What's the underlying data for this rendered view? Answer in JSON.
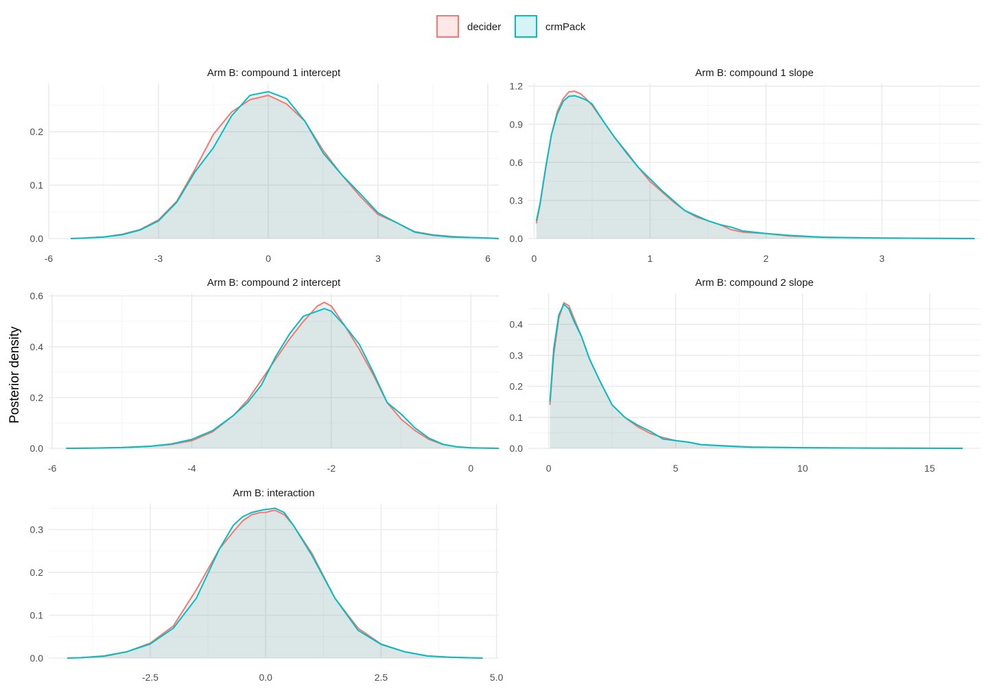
{
  "ylabel": "Posterior density",
  "legend": {
    "placement": "top-center",
    "items": [
      {
        "label": "decider",
        "color": "#F8766D",
        "fill": "#FDE8E7"
      },
      {
        "label": "crmPack",
        "color": "#00BFC4",
        "fill": "#D6F4F5"
      }
    ]
  },
  "chart_data": [
    {
      "type": "area",
      "title": "Arm B: compound 1 intercept",
      "xlim": [
        -6,
        6.3
      ],
      "ylim": [
        0,
        0.29
      ],
      "xticks": [
        -6,
        -3,
        0,
        3,
        6
      ],
      "xtick_labels": [
        "-6",
        "-3",
        "0",
        "3",
        "6"
      ],
      "yticks": [
        0,
        0.1,
        0.2
      ],
      "ytick_labels": [
        "0.0",
        "0.1",
        "0.2"
      ],
      "series": [
        {
          "name": "decider",
          "x": [
            -5.4,
            -5,
            -4.5,
            -4,
            -3.5,
            -3,
            -2.5,
            -2,
            -1.5,
            -1,
            -0.5,
            0,
            0.5,
            1,
            1.5,
            2,
            2.5,
            3,
            3.5,
            4,
            4.5,
            5,
            5.5,
            6,
            6.3
          ],
          "y": [
            0,
            0.001,
            0.003,
            0.008,
            0.017,
            0.035,
            0.07,
            0.13,
            0.195,
            0.237,
            0.26,
            0.268,
            0.252,
            0.22,
            0.165,
            0.12,
            0.08,
            0.045,
            0.03,
            0.013,
            0.007,
            0.004,
            0.002,
            0.001,
            0
          ]
        },
        {
          "name": "crmPack",
          "x": [
            -5.4,
            -5,
            -4.5,
            -4,
            -3.5,
            -3,
            -2.5,
            -2,
            -1.5,
            -1,
            -0.5,
            0,
            0.5,
            1,
            1.5,
            2,
            2.5,
            3,
            3.5,
            4,
            4.5,
            5,
            5.5,
            6,
            6.3
          ],
          "y": [
            0,
            0.001,
            0.003,
            0.007,
            0.016,
            0.033,
            0.068,
            0.125,
            0.17,
            0.23,
            0.268,
            0.275,
            0.262,
            0.22,
            0.16,
            0.12,
            0.085,
            0.048,
            0.03,
            0.012,
            0.006,
            0.003,
            0.002,
            0.001,
            0
          ]
        }
      ]
    },
    {
      "type": "area",
      "title": "Arm B: compound 1 slope",
      "xlim": [
        -0.05,
        3.85
      ],
      "ylim": [
        0,
        1.22
      ],
      "xticks": [
        0,
        1,
        2,
        3
      ],
      "xtick_labels": [
        "0",
        "1",
        "2",
        "3"
      ],
      "yticks": [
        0,
        0.3,
        0.6,
        0.9,
        1.2
      ],
      "ytick_labels": [
        "0.0",
        "0.3",
        "0.6",
        "0.9",
        "1.2"
      ],
      "series": [
        {
          "name": "decider",
          "x": [
            0.02,
            0.05,
            0.1,
            0.15,
            0.2,
            0.25,
            0.3,
            0.35,
            0.4,
            0.45,
            0.5,
            0.6,
            0.7,
            0.8,
            0.9,
            1,
            1.1,
            1.2,
            1.3,
            1.4,
            1.5,
            1.6,
            1.7,
            1.8,
            2,
            2.2,
            2.5,
            3,
            3.5,
            3.8
          ],
          "y": [
            0.12,
            0.26,
            0.55,
            0.82,
            1.0,
            1.1,
            1.155,
            1.16,
            1.14,
            1.1,
            1.05,
            0.92,
            0.79,
            0.68,
            0.56,
            0.45,
            0.37,
            0.29,
            0.22,
            0.17,
            0.14,
            0.11,
            0.07,
            0.05,
            0.04,
            0.02,
            0.01,
            0.004,
            0.001,
            0
          ]
        },
        {
          "name": "crmPack",
          "x": [
            0.02,
            0.05,
            0.1,
            0.15,
            0.2,
            0.25,
            0.3,
            0.35,
            0.4,
            0.45,
            0.5,
            0.6,
            0.7,
            0.8,
            0.9,
            1,
            1.1,
            1.2,
            1.3,
            1.4,
            1.5,
            1.6,
            1.7,
            1.8,
            2,
            2.2,
            2.5,
            3,
            3.5,
            3.8
          ],
          "y": [
            0.14,
            0.27,
            0.56,
            0.82,
            0.98,
            1.08,
            1.12,
            1.125,
            1.11,
            1.09,
            1.06,
            0.92,
            0.79,
            0.67,
            0.56,
            0.47,
            0.38,
            0.3,
            0.22,
            0.18,
            0.14,
            0.11,
            0.09,
            0.06,
            0.04,
            0.025,
            0.01,
            0.004,
            0.001,
            0
          ]
        }
      ]
    },
    {
      "type": "area",
      "title": "Arm B: compound 2 intercept",
      "xlim": [
        -6.05,
        0.4
      ],
      "ylim": [
        0,
        0.61
      ],
      "xticks": [
        -6,
        -4,
        -2,
        0
      ],
      "xtick_labels": [
        "-6",
        "-4",
        "-2",
        "0"
      ],
      "yticks": [
        0,
        0.2,
        0.4,
        0.6
      ],
      "ytick_labels": [
        "0.0",
        "0.2",
        "0.4",
        "0.6"
      ],
      "series": [
        {
          "name": "decider",
          "x": [
            -5.8,
            -5.4,
            -5,
            -4.6,
            -4.3,
            -4,
            -3.7,
            -3.4,
            -3.2,
            -3,
            -2.8,
            -2.6,
            -2.4,
            -2.2,
            -2.1,
            -2,
            -1.8,
            -1.6,
            -1.4,
            -1.2,
            -1,
            -0.8,
            -0.6,
            -0.4,
            -0.2,
            0,
            0.4
          ],
          "y": [
            0,
            0.001,
            0.003,
            0.008,
            0.015,
            0.03,
            0.065,
            0.13,
            0.19,
            0.27,
            0.35,
            0.43,
            0.5,
            0.56,
            0.575,
            0.56,
            0.48,
            0.39,
            0.29,
            0.18,
            0.115,
            0.07,
            0.035,
            0.015,
            0.006,
            0.002,
            0
          ]
        },
        {
          "name": "crmPack",
          "x": [
            -5.8,
            -5.4,
            -5,
            -4.6,
            -4.3,
            -4,
            -3.7,
            -3.4,
            -3.2,
            -3,
            -2.8,
            -2.6,
            -2.4,
            -2.2,
            -2.1,
            -2,
            -1.8,
            -1.6,
            -1.4,
            -1.2,
            -1,
            -0.8,
            -0.6,
            -0.4,
            -0.2,
            0,
            0.4
          ],
          "y": [
            0,
            0.001,
            0.003,
            0.008,
            0.017,
            0.035,
            0.07,
            0.13,
            0.18,
            0.25,
            0.36,
            0.45,
            0.52,
            0.54,
            0.55,
            0.54,
            0.48,
            0.41,
            0.3,
            0.18,
            0.135,
            0.08,
            0.04,
            0.016,
            0.006,
            0.002,
            0
          ]
        }
      ]
    },
    {
      "type": "area",
      "title": "Arm B: compound 2 slope",
      "xlim": [
        -0.8,
        17
      ],
      "ylim": [
        0,
        0.5
      ],
      "xticks": [
        0,
        5,
        10,
        15
      ],
      "xtick_labels": [
        "0",
        "5",
        "10",
        "15"
      ],
      "yticks": [
        0,
        0.1,
        0.2,
        0.3,
        0.4
      ],
      "ytick_labels": [
        "0.0",
        "0.1",
        "0.2",
        "0.3",
        "0.4"
      ],
      "series": [
        {
          "name": "decider",
          "x": [
            0.05,
            0.2,
            0.4,
            0.6,
            0.8,
            1,
            1.3,
            1.6,
            2,
            2.5,
            3,
            3.5,
            4,
            4.5,
            5,
            5.5,
            6,
            7,
            8,
            9,
            10,
            12,
            14,
            16.3
          ],
          "y": [
            0.14,
            0.3,
            0.42,
            0.47,
            0.46,
            0.42,
            0.36,
            0.29,
            0.22,
            0.14,
            0.1,
            0.07,
            0.048,
            0.035,
            0.025,
            0.02,
            0.012,
            0.008,
            0.004,
            0.003,
            0.002,
            0.001,
            0.0005,
            0
          ]
        },
        {
          "name": "crmPack",
          "x": [
            0.05,
            0.2,
            0.4,
            0.6,
            0.8,
            1,
            1.3,
            1.6,
            2,
            2.5,
            3,
            3.5,
            4,
            4.5,
            5,
            5.5,
            6,
            7,
            8,
            9,
            10,
            12,
            14,
            16.3
          ],
          "y": [
            0.15,
            0.32,
            0.43,
            0.465,
            0.45,
            0.41,
            0.36,
            0.29,
            0.22,
            0.14,
            0.1,
            0.075,
            0.055,
            0.03,
            0.025,
            0.02,
            0.012,
            0.007,
            0.004,
            0.003,
            0.002,
            0.001,
            0.0005,
            0
          ]
        }
      ]
    },
    {
      "type": "area",
      "title": "Arm B: interaction",
      "xlim": [
        -4.7,
        5.05
      ],
      "ylim": [
        0,
        0.36
      ],
      "xticks": [
        -2.5,
        0,
        2.5,
        5
      ],
      "xtick_labels": [
        "-2.5",
        "0.0",
        "2.5",
        "5.0"
      ],
      "yticks": [
        0,
        0.1,
        0.2,
        0.3
      ],
      "ytick_labels": [
        "0.0",
        "0.1",
        "0.2",
        "0.3"
      ],
      "series": [
        {
          "name": "decider",
          "x": [
            -4.3,
            -4,
            -3.5,
            -3,
            -2.5,
            -2,
            -1.5,
            -1,
            -0.7,
            -0.5,
            -0.3,
            -0.1,
            0,
            0.1,
            0.2,
            0.4,
            0.6,
            1,
            1.5,
            2,
            2.5,
            3,
            3.5,
            4,
            4.7
          ],
          "y": [
            0,
            0.001,
            0.004,
            0.015,
            0.035,
            0.075,
            0.16,
            0.255,
            0.295,
            0.32,
            0.335,
            0.34,
            0.34,
            0.343,
            0.345,
            0.335,
            0.31,
            0.245,
            0.14,
            0.07,
            0.033,
            0.015,
            0.005,
            0.002,
            0
          ]
        },
        {
          "name": "crmPack",
          "x": [
            -4.3,
            -4,
            -3.5,
            -3,
            -2.5,
            -2,
            -1.5,
            -1,
            -0.7,
            -0.5,
            -0.3,
            -0.1,
            0,
            0.1,
            0.2,
            0.4,
            0.6,
            1,
            1.5,
            2,
            2.5,
            3,
            3.5,
            4,
            4.7
          ],
          "y": [
            0,
            0.001,
            0.005,
            0.015,
            0.033,
            0.07,
            0.14,
            0.255,
            0.31,
            0.33,
            0.34,
            0.345,
            0.347,
            0.348,
            0.35,
            0.34,
            0.31,
            0.24,
            0.14,
            0.065,
            0.032,
            0.015,
            0.005,
            0.002,
            0
          ]
        }
      ]
    }
  ]
}
